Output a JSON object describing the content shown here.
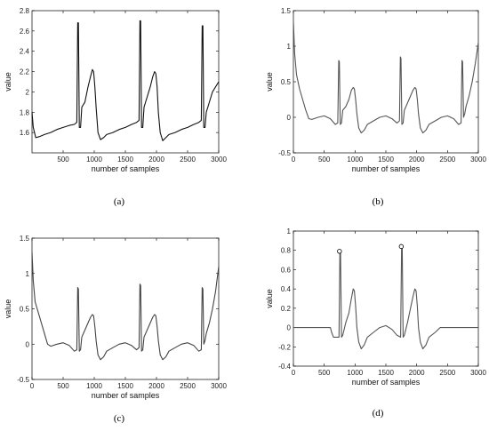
{
  "chart_data": [
    {
      "type": "line",
      "panel_label": "(a)",
      "xlabel": "number of samples",
      "ylabel": "value",
      "xlim": [
        0,
        3000
      ],
      "ylim": [
        1.4,
        2.8
      ],
      "xticks": [
        500,
        1000,
        1500,
        2000,
        2500,
        3000
      ],
      "yticks": [
        1.6,
        1.8,
        2,
        2.2,
        2.4,
        2.6,
        2.8
      ],
      "series": [
        {
          "color": "#111111",
          "x": [
            0,
            20,
            60,
            120,
            200,
            300,
            400,
            500,
            600,
            680,
            720,
            735,
            745,
            760,
            780,
            800,
            850,
            900,
            940,
            970,
            990,
            1010,
            1030,
            1060,
            1100,
            1150,
            1200,
            1300,
            1400,
            1500,
            1600,
            1680,
            1720,
            1735,
            1745,
            1760,
            1780,
            1800,
            1850,
            1900,
            1940,
            1970,
            1990,
            2010,
            2030,
            2060,
            2100,
            2150,
            2200,
            2300,
            2400,
            2500,
            2600,
            2680,
            2720,
            2735,
            2745,
            2760,
            2780,
            2800,
            2850,
            2900,
            2950,
            3000
          ],
          "y": [
            1.8,
            1.65,
            1.55,
            1.56,
            1.58,
            1.6,
            1.63,
            1.65,
            1.67,
            1.68,
            1.7,
            2.68,
            2.68,
            1.65,
            1.65,
            1.85,
            1.9,
            2.05,
            2.15,
            2.22,
            2.2,
            2.05,
            1.85,
            1.6,
            1.53,
            1.55,
            1.58,
            1.6,
            1.63,
            1.65,
            1.68,
            1.7,
            1.72,
            2.7,
            2.7,
            1.65,
            1.65,
            1.85,
            1.95,
            2.05,
            2.15,
            2.2,
            2.18,
            2.05,
            1.8,
            1.6,
            1.52,
            1.55,
            1.58,
            1.6,
            1.63,
            1.65,
            1.68,
            1.7,
            1.72,
            2.65,
            2.65,
            1.65,
            1.65,
            1.8,
            1.9,
            2.0,
            2.05,
            2.1
          ]
        }
      ]
    },
    {
      "type": "line",
      "panel_label": "(b)",
      "xlabel": "number of samples",
      "ylabel": "value",
      "xlim": [
        0,
        3000
      ],
      "ylim": [
        -0.5,
        1.5
      ],
      "xticks": [
        0,
        500,
        1000,
        1500,
        2000,
        2500,
        3000
      ],
      "yticks": [
        -0.5,
        0,
        0.5,
        1,
        1.5
      ],
      "series": [
        {
          "color": "#555555",
          "x": [
            0,
            20,
            50,
            100,
            150,
            200,
            250,
            300,
            400,
            500,
            600,
            680,
            720,
            735,
            745,
            760,
            780,
            800,
            850,
            900,
            940,
            970,
            990,
            1010,
            1030,
            1060,
            1100,
            1150,
            1200,
            1300,
            1400,
            1500,
            1600,
            1680,
            1720,
            1735,
            1745,
            1760,
            1780,
            1800,
            1850,
            1900,
            1940,
            1970,
            1990,
            2010,
            2030,
            2060,
            2100,
            2150,
            2200,
            2300,
            2400,
            2500,
            2600,
            2680,
            2720,
            2735,
            2745,
            2760,
            2780,
            2800,
            2850,
            2900,
            2950,
            3000
          ],
          "y": [
            1.35,
            0.9,
            0.6,
            0.4,
            0.25,
            0.1,
            -0.02,
            -0.03,
            0.0,
            0.02,
            -0.02,
            -0.1,
            -0.08,
            0.8,
            0.78,
            -0.1,
            -0.08,
            0.1,
            0.15,
            0.25,
            0.38,
            0.42,
            0.4,
            0.25,
            0.05,
            -0.15,
            -0.22,
            -0.18,
            -0.1,
            -0.05,
            0.0,
            0.02,
            -0.02,
            -0.08,
            -0.05,
            0.85,
            0.83,
            -0.1,
            -0.08,
            0.1,
            0.2,
            0.3,
            0.38,
            0.42,
            0.4,
            0.25,
            0.05,
            -0.15,
            -0.22,
            -0.18,
            -0.1,
            -0.05,
            0.0,
            0.02,
            -0.02,
            -0.1,
            -0.08,
            0.8,
            0.78,
            0.0,
            0.05,
            0.15,
            0.3,
            0.5,
            0.75,
            1.05
          ]
        }
      ]
    },
    {
      "type": "line",
      "panel_label": "(c)",
      "xlabel": "number of samples",
      "ylabel": "value",
      "xlim": [
        0,
        3000
      ],
      "ylim": [
        -0.5,
        1.5
      ],
      "xticks": [
        0,
        500,
        1000,
        1500,
        2000,
        2500,
        3000
      ],
      "yticks": [
        -0.5,
        0,
        0.5,
        1,
        1.5
      ],
      "series": [
        {
          "color": "#444444",
          "x": [
            0,
            20,
            50,
            100,
            150,
            200,
            250,
            300,
            400,
            500,
            600,
            680,
            720,
            735,
            745,
            760,
            780,
            800,
            850,
            900,
            940,
            970,
            990,
            1010,
            1030,
            1060,
            1100,
            1150,
            1200,
            1300,
            1400,
            1500,
            1600,
            1680,
            1720,
            1735,
            1745,
            1760,
            1780,
            1800,
            1850,
            1900,
            1940,
            1970,
            1990,
            2010,
            2030,
            2060,
            2100,
            2150,
            2200,
            2300,
            2400,
            2500,
            2600,
            2680,
            2720,
            2735,
            2745,
            2760,
            2780,
            2800,
            2850,
            2900,
            2950,
            3000
          ],
          "y": [
            1.3,
            0.9,
            0.6,
            0.45,
            0.3,
            0.15,
            0.0,
            -0.03,
            0.0,
            0.02,
            -0.02,
            -0.1,
            -0.08,
            0.8,
            0.78,
            -0.1,
            -0.08,
            0.1,
            0.2,
            0.3,
            0.38,
            0.42,
            0.4,
            0.25,
            0.05,
            -0.15,
            -0.22,
            -0.18,
            -0.1,
            -0.05,
            0.0,
            0.02,
            -0.02,
            -0.08,
            -0.05,
            0.85,
            0.83,
            -0.1,
            -0.08,
            0.1,
            0.2,
            0.3,
            0.38,
            0.42,
            0.4,
            0.25,
            0.05,
            -0.15,
            -0.22,
            -0.18,
            -0.1,
            -0.05,
            0.0,
            0.02,
            -0.02,
            -0.1,
            -0.08,
            0.8,
            0.78,
            0.0,
            0.05,
            0.15,
            0.3,
            0.5,
            0.75,
            1.1
          ]
        }
      ]
    },
    {
      "type": "line",
      "panel_label": "(d)",
      "xlabel": "number of samples",
      "ylabel": "value",
      "xlim": [
        0,
        3000
      ],
      "ylim": [
        -0.4,
        1
      ],
      "xticks": [
        0,
        500,
        1000,
        1500,
        2000,
        2500,
        3000
      ],
      "yticks": [
        -0.4,
        -0.2,
        0,
        0.2,
        0.4,
        0.6,
        0.8,
        1
      ],
      "series": [
        {
          "color": "#555555",
          "x": [
            0,
            600,
            620,
            650,
            700,
            740,
            755,
            765,
            780,
            800,
            850,
            900,
            940,
            970,
            990,
            1010,
            1030,
            1060,
            1100,
            1150,
            1200,
            1300,
            1400,
            1500,
            1600,
            1680,
            1740,
            1755,
            1765,
            1780,
            1800,
            1850,
            1900,
            1940,
            1970,
            1990,
            2010,
            2030,
            2060,
            2100,
            2150,
            2200,
            2300,
            2380,
            2400,
            3000
          ],
          "y": [
            0,
            0,
            -0.05,
            -0.1,
            -0.1,
            -0.1,
            0.78,
            0.77,
            -0.1,
            -0.08,
            0.05,
            0.15,
            0.3,
            0.4,
            0.38,
            0.22,
            0.0,
            -0.15,
            -0.22,
            -0.18,
            -0.1,
            -0.05,
            0.0,
            0.02,
            -0.02,
            -0.08,
            -0.1,
            0.84,
            0.82,
            -0.1,
            -0.08,
            0.05,
            0.2,
            0.32,
            0.4,
            0.38,
            0.22,
            0.0,
            -0.15,
            -0.22,
            -0.18,
            -0.1,
            -0.05,
            0.0,
            0,
            0
          ]
        }
      ],
      "markers": {
        "x": [
          748,
          1750
        ],
        "y": [
          0.79,
          0.84
        ]
      }
    }
  ]
}
